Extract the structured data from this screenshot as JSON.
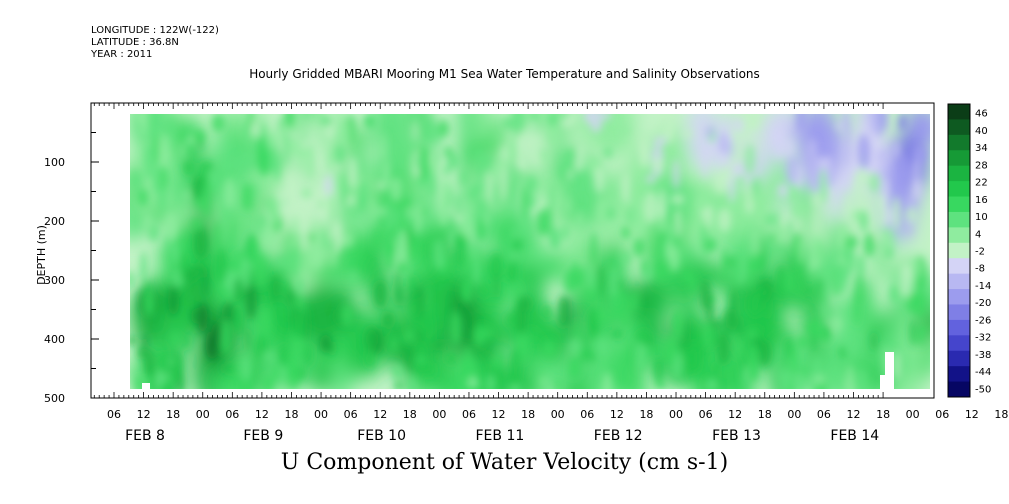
{
  "header": {
    "longitude": "LONGITUDE : 122W(-122)",
    "latitude": "LATITUDE : 36.8N",
    "year": "YEAR : 2011"
  },
  "chart_data": {
    "type": "heatmap",
    "title": "Hourly Gridded MBARI Mooring M1 Sea Water Temperature and Salinity Observations",
    "bottom_title": "U Component of Water Velocity (cm s-1)",
    "ylabel": "DEPTH (m)",
    "xlabel": "",
    "ylim": [
      500,
      0
    ],
    "y_reversed": true,
    "y_ticks": [
      100,
      200,
      300,
      400,
      500
    ],
    "x_hour_labels": [
      "06",
      "12",
      "18",
      "00",
      "06",
      "12",
      "18",
      "00",
      "06",
      "12",
      "18",
      "00",
      "06",
      "12",
      "18",
      "00",
      "06",
      "12",
      "18",
      "00",
      "06",
      "12",
      "18",
      "00",
      "06",
      "12",
      "18",
      "00",
      "06",
      "12",
      "18",
      "00"
    ],
    "x_day_labels": [
      "FEB  8",
      "FEB  9",
      "FEB 10",
      "FEB 11",
      "FEB 12",
      "FEB 13",
      "FEB 14"
    ],
    "colorbar": {
      "labels": [
        "46",
        "40",
        "34",
        "28",
        "22",
        "16",
        "10",
        "4",
        "-2",
        "-8",
        "-14",
        "-20",
        "-26",
        "-32",
        "-38",
        "-44",
        "-50"
      ],
      "colors": [
        "#0b3d17",
        "#0e5a21",
        "#127a2c",
        "#169a36",
        "#1bb441",
        "#22c84c",
        "#38d860",
        "#5ee27f",
        "#8fec9f",
        "#c2f2c6",
        "#d4d4f6",
        "#b8b8f2",
        "#9c9cee",
        "#7f7fe6",
        "#6262de",
        "#4545cc",
        "#2a2ab0",
        "#121288",
        "#060663"
      ]
    },
    "data_description": "Depth-time section of U velocity, approx 20-480 m depth, Feb 8 12:00 to Feb 15 00:00 2011; greens (positive) dominate deep layers 250-450 m, blues (negative) near surface Feb 11-14"
  }
}
